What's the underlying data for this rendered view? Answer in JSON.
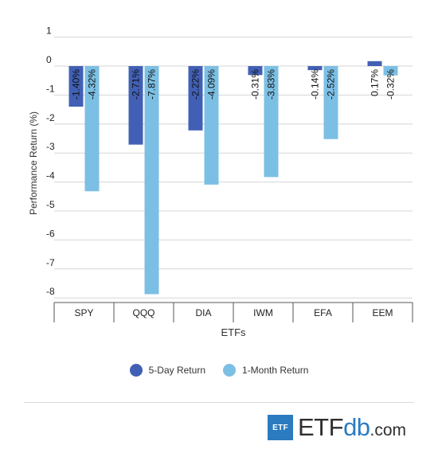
{
  "chart_data": {
    "type": "bar",
    "xlabel": "ETFs",
    "ylabel": "Performance Return (%)",
    "categories": [
      "SPY",
      "QQQ",
      "DIA",
      "IWM",
      "EFA",
      "EEM"
    ],
    "series": [
      {
        "name": "5-Day Return",
        "values": [
          -1.4,
          -2.71,
          -2.22,
          -0.31,
          -0.14,
          0.17
        ],
        "labels": [
          "-1.40%",
          "-2.71%",
          "-2.22%",
          "-0.31%",
          "-0.14%",
          "0.17%"
        ],
        "color": "#4160b5"
      },
      {
        "name": "1-Month Return",
        "values": [
          -4.32,
          -7.87,
          -4.09,
          -3.83,
          -2.52,
          -0.32
        ],
        "labels": [
          "-4.32%",
          "-7.87%",
          "-4.09%",
          "-3.83%",
          "-2.52%",
          "-0.32%"
        ],
        "color": "#7cbfe4"
      }
    ],
    "ylim": [
      -8.3,
      1
    ],
    "yticks": [
      1,
      0,
      -1,
      -2,
      -3,
      -4,
      -5,
      -6,
      -7,
      -8
    ],
    "grid": true,
    "legend": "bottom-center"
  },
  "legend": {
    "items": [
      {
        "label": "5-Day Return",
        "color": "#4160b5"
      },
      {
        "label": "1-Month Return",
        "color": "#7cbfe4"
      }
    ]
  },
  "logo": {
    "box_text": "ETF",
    "brand_etf": "ETF",
    "brand_db": "db",
    "brand_com": ".com",
    "box_color": "#2b7bc0",
    "db_color": "#2b7bc0"
  }
}
